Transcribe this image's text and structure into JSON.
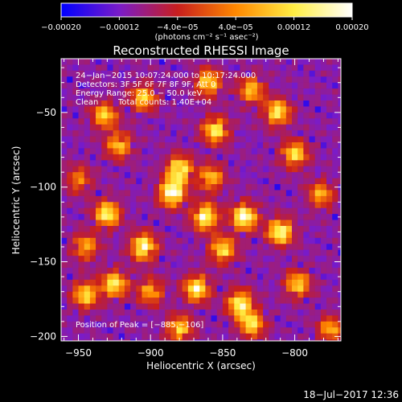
{
  "chart_data": {
    "type": "heatmap",
    "title": "Reconstructed RHESSI Image",
    "xlabel": "Heliocentric X (arcsec)",
    "ylabel": "Heliocentric Y (arcsec)",
    "xlim": [
      -962,
      -768
    ],
    "ylim": [
      -203,
      -14
    ],
    "x_ticks": [
      -950,
      -900,
      -850,
      -800
    ],
    "x_tick_labels": [
      "−950",
      "−900",
      "−850",
      "−800"
    ],
    "y_ticks": [
      -50,
      -100,
      -150,
      -200
    ],
    "y_tick_labels": [
      "−50",
      "−100",
      "−150",
      "−200"
    ],
    "colorbar": {
      "range": [
        -0.0002,
        0.0002
      ],
      "ticks": [
        -0.0002,
        -0.00012,
        -4e-05,
        4e-05,
        0.00012,
        0.0002
      ],
      "tick_labels": [
        "−0.00020",
        "−0.00012",
        "−4.0e−05",
        "4.0e−05",
        "0.00012",
        "0.00020"
      ],
      "unit": "(photons cm⁻² s⁻¹ asec⁻²)",
      "colors": [
        "#0000ff",
        "#7a1cc8",
        "#c81e1e",
        "#ff8800",
        "#ffee44",
        "#ffffff"
      ]
    },
    "annotations": {
      "time_range": "24−Jan−2015 10:07:24.000 to 10:17:24.000",
      "detectors": "Detectors: 3F 5F 6F 7F 8F 9F, Att 0",
      "energy_range": "Energy Range: 25.0 − 50.0 keV",
      "clean": "Clean",
      "total_counts": "Total counts: 1.40E+04",
      "peak": "Position of Peak = [−885,−106]"
    },
    "peak": {
      "x": -885,
      "y": -106
    },
    "hotspots": [
      {
        "x": -885,
        "y": -104,
        "level": 1.0
      },
      {
        "x": -880,
        "y": -88,
        "level": 0.85
      },
      {
        "x": -905,
        "y": -140,
        "level": 0.9
      },
      {
        "x": -930,
        "y": -118,
        "level": 0.85
      },
      {
        "x": -925,
        "y": -165,
        "level": 0.8
      },
      {
        "x": -945,
        "y": -172,
        "level": 0.75
      },
      {
        "x": -932,
        "y": -52,
        "level": 0.7
      },
      {
        "x": -922,
        "y": -72,
        "level": 0.65
      },
      {
        "x": -905,
        "y": -40,
        "level": 0.7
      },
      {
        "x": -860,
        "y": -30,
        "level": 0.75
      },
      {
        "x": -855,
        "y": -62,
        "level": 0.8
      },
      {
        "x": -858,
        "y": -94,
        "level": 0.65
      },
      {
        "x": -862,
        "y": -120,
        "level": 0.9
      },
      {
        "x": -835,
        "y": -120,
        "level": 0.95
      },
      {
        "x": -850,
        "y": -142,
        "level": 0.75
      },
      {
        "x": -868,
        "y": -168,
        "level": 0.85
      },
      {
        "x": -880,
        "y": -195,
        "level": 0.7
      },
      {
        "x": -838,
        "y": -178,
        "level": 0.85
      },
      {
        "x": -830,
        "y": -192,
        "level": 0.75
      },
      {
        "x": -812,
        "y": -50,
        "level": 0.8
      },
      {
        "x": -800,
        "y": -78,
        "level": 0.75
      },
      {
        "x": -810,
        "y": -130,
        "level": 0.9
      },
      {
        "x": -798,
        "y": -165,
        "level": 0.7
      },
      {
        "x": -782,
        "y": -105,
        "level": 0.6
      },
      {
        "x": -830,
        "y": -35,
        "level": 0.65
      },
      {
        "x": -950,
        "y": -95,
        "level": 0.5
      },
      {
        "x": -900,
        "y": -170,
        "level": 0.6
      },
      {
        "x": -945,
        "y": -140,
        "level": 0.6
      },
      {
        "x": -775,
        "y": -195,
        "level": 0.6
      }
    ]
  },
  "footer": {
    "date": "18−Jul−2017 12:36"
  }
}
